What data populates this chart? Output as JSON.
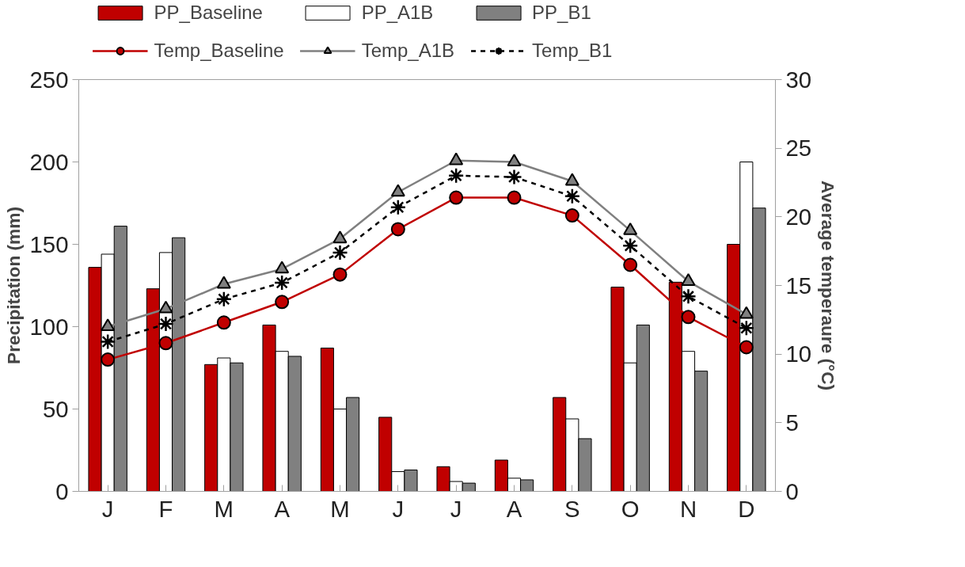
{
  "chart_data": {
    "type": "bar",
    "categories": [
      "J",
      "F",
      "M",
      "A",
      "M",
      "J",
      "J",
      "A",
      "S",
      "O",
      "N",
      "D"
    ],
    "ylabel": "Precipitation (mm)",
    "y2label": "Average temperaure (°C)",
    "ylim": [
      0,
      250
    ],
    "yticks": [
      0,
      50,
      100,
      150,
      200,
      250
    ],
    "y2lim": [
      0,
      30
    ],
    "y2ticks": [
      0,
      5,
      10,
      15,
      20,
      25,
      30
    ],
    "legend": "top",
    "series": [
      {
        "name": "PP_Baseline",
        "color": "#c00000",
        "values": [
          136,
          123,
          77,
          101,
          87,
          45,
          15,
          19,
          57,
          124,
          127,
          150
        ]
      },
      {
        "name": "PP_A1B",
        "color": "#ffffff",
        "values": [
          144,
          145,
          81,
          85,
          50,
          12,
          6,
          8,
          44,
          78,
          85,
          200
        ]
      },
      {
        "name": "PP_B1",
        "color": "#808080",
        "values": [
          161,
          154,
          78,
          82,
          57,
          13,
          5,
          7,
          32,
          101,
          73,
          172
        ]
      },
      {
        "name": "Temp_Baseline",
        "type": "line",
        "axis": "y2",
        "marker": "circle",
        "line_style": "solid",
        "color": "#c00000",
        "values": [
          9.6,
          10.8,
          12.3,
          13.8,
          15.8,
          19.1,
          21.4,
          21.4,
          20.1,
          16.5,
          12.7,
          10.5
        ]
      },
      {
        "name": "Temp_A1B",
        "type": "line",
        "axis": "y2",
        "marker": "triangle",
        "line_style": "solid",
        "color": "#808080",
        "values": [
          12.0,
          13.3,
          15.1,
          16.2,
          18.4,
          21.8,
          24.1,
          24.0,
          22.6,
          19.0,
          15.3,
          12.9
        ]
      },
      {
        "name": "Temp_B1",
        "type": "line",
        "axis": "y2",
        "marker": "cross",
        "line_style": "dashed",
        "color": "#000000",
        "values": [
          10.9,
          12.2,
          14.0,
          15.2,
          17.4,
          20.7,
          23.0,
          22.9,
          21.5,
          17.9,
          14.2,
          11.9
        ]
      }
    ]
  }
}
